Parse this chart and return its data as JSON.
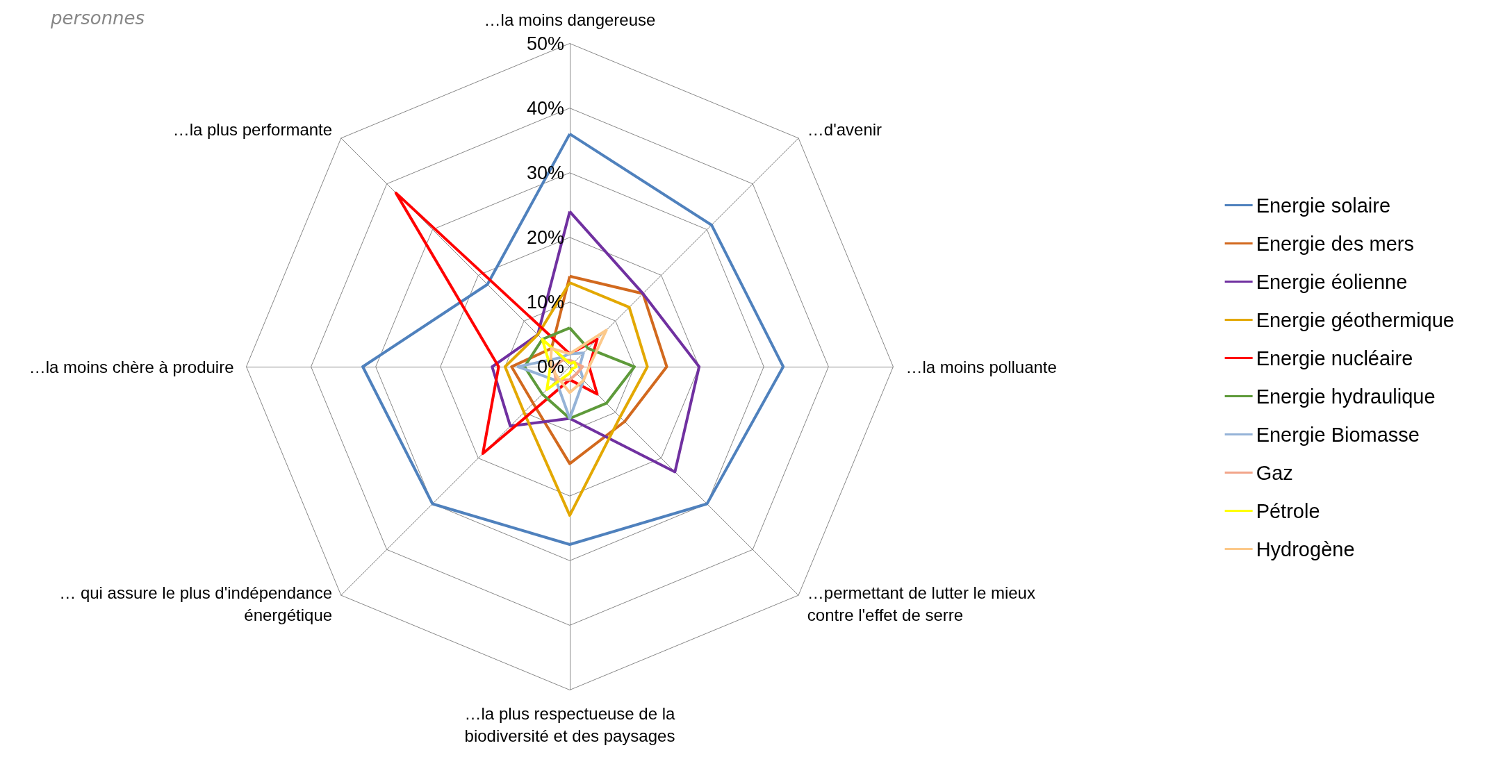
{
  "chart_data": {
    "type": "radar",
    "title": "personnes",
    "categories": [
      "…la moins dangereuse",
      "…d'avenir",
      "…la moins polluante",
      "…permettant de lutter le mieux contre l'effet de serre",
      "…la plus respectueuse de la biodiversité et des paysages",
      "… qui assure le plus d'indépendance énergétique",
      "…la moins chère à produire",
      "…la plus performante"
    ],
    "ylim": [
      0,
      50
    ],
    "yticks": [
      {
        "value": 0,
        "label": "0%"
      },
      {
        "value": 10,
        "label": "10%"
      },
      {
        "value": 20,
        "label": "20%"
      },
      {
        "value": 30,
        "label": "30%"
      },
      {
        "value": 40,
        "label": "40%"
      },
      {
        "value": 50,
        "label": "50%"
      }
    ],
    "legend": "right",
    "grid": true,
    "marker": "none",
    "series": [
      {
        "name": "Energie solaire",
        "color": "#4f81bd",
        "values": [
          36,
          31,
          33,
          30,
          27.5,
          30,
          32,
          18
        ]
      },
      {
        "name": "Energie des mers",
        "color": "#d2691e",
        "values": [
          14,
          16,
          15,
          12,
          15,
          8,
          9,
          4
        ]
      },
      {
        "name": "Energie éolienne",
        "color": "#7030a0",
        "values": [
          24,
          16,
          20,
          23,
          8,
          13,
          12,
          7
        ]
      },
      {
        "name": "Energie géothermique",
        "color": "#e3a800",
        "values": [
          13,
          13,
          12,
          11,
          23,
          10,
          10,
          7
        ]
      },
      {
        "name": "Energie nucléaire",
        "color": "#ff0000",
        "values": [
          2,
          6,
          3,
          6,
          2,
          19,
          11,
          38
        ]
      },
      {
        "name": "Energie hydraulique",
        "color": "#5e9a3a",
        "values": [
          6,
          4,
          10,
          8,
          8,
          6,
          7,
          6
        ]
      },
      {
        "name": "Energie Biomasse",
        "color": "#95b3d7",
        "values": [
          2,
          3,
          1.5,
          3,
          8,
          3,
          8,
          2
        ]
      },
      {
        "name": "Gaz",
        "color": "#f2a58a",
        "values": [
          1,
          1,
          2,
          1.5,
          2,
          3,
          2.5,
          1.5
        ]
      },
      {
        "name": "Pétrole",
        "color": "#ffff00",
        "values": [
          0.5,
          1,
          1,
          0.5,
          1,
          5,
          3,
          6
        ]
      },
      {
        "name": "Hydrogène",
        "color": "#fcc98a",
        "values": [
          2,
          8,
          3,
          3,
          4,
          2.5,
          3,
          4
        ]
      }
    ]
  }
}
